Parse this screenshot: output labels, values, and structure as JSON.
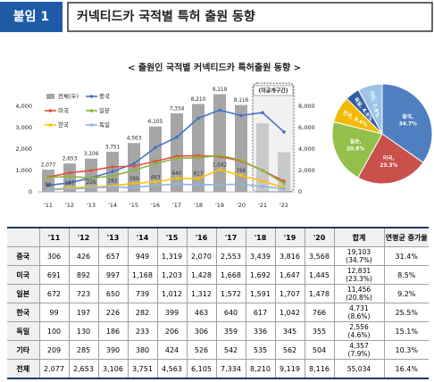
{
  "header": {
    "badge": "붙임 1",
    "title": "커넥티드카 국적별 특허 출원 동향"
  },
  "chart_data": [
    {
      "type": "bar-line",
      "title": "< 출원인 국적별 커넥티드카 특허출원 동향 >",
      "categories": [
        "'11",
        "'12",
        "'13",
        "'14",
        "'15",
        "'16",
        "'17",
        "'18",
        "'19",
        "'20",
        "'21",
        "'22"
      ],
      "ylim": [
        0,
        5000
      ],
      "yticks": [
        0,
        {
          "value": 1000,
          "label": "1,000"
        },
        {
          "value": 2000,
          "label": "2,000"
        },
        {
          "value": 3000,
          "label": "3,000"
        },
        {
          "value": 4000,
          "label": "4,000"
        }
      ],
      "y2lim": [
        0,
        10000
      ],
      "y2ticks": [
        0,
        {
          "value": 2000,
          "label": "2,000"
        },
        {
          "value": 4000,
          "label": "4,000"
        },
        {
          "value": 6000,
          "label": "6,000"
        },
        {
          "value": 8000,
          "label": "8,000"
        }
      ],
      "grid": false,
      "annotation": "(미공개구간)",
      "series": [
        {
          "name": "전체(우)",
          "kind": "bar",
          "axis": "y2",
          "color": "#a6a6a6",
          "values": [
            2077,
            2653,
            3106,
            3751,
            4563,
            6105,
            7334,
            8210,
            9119,
            8116,
            6400,
            3700
          ],
          "value_labels": [
            "2,077",
            "2,653",
            "3,106",
            "3,751",
            "4,563",
            "6,105",
            "7,334",
            "8,210",
            "9,119",
            "8,116",
            null,
            null
          ]
        },
        {
          "name": "중국",
          "kind": "line",
          "color": "#4472c4",
          "values": [
            306,
            426,
            657,
            949,
            1319,
            2070,
            2553,
            3439,
            3816,
            3568,
            3700,
            2800
          ]
        },
        {
          "name": "미국",
          "kind": "line",
          "color": "#e0533f",
          "values": [
            691,
            892,
            997,
            1168,
            1203,
            1428,
            1668,
            1692,
            1647,
            1445,
            1000,
            500
          ]
        },
        {
          "name": "일본",
          "kind": "line",
          "color": "#8cb43c",
          "values": [
            672,
            723,
            650,
            739,
            1012,
            1312,
            1572,
            1591,
            1707,
            1478,
            1000,
            400
          ]
        },
        {
          "name": "한국",
          "kind": "line",
          "color": "#ffc000",
          "values": [
            99,
            197,
            226,
            282,
            399,
            463,
            640,
            617,
            1042,
            766,
            500,
            200
          ],
          "value_labels": [
            "99",
            "197",
            "226",
            "282",
            "399",
            "463",
            "640",
            "617",
            "1,042",
            "766",
            null,
            null
          ]
        },
        {
          "name": "독일",
          "kind": "line",
          "color": "#8db3e2",
          "values": [
            100,
            130,
            186,
            233,
            206,
            306,
            359,
            336,
            345,
            355,
            250,
            150
          ]
        }
      ]
    },
    {
      "type": "pie",
      "categories": [
        "중국,",
        "미국,",
        "일본,",
        "한국,",
        "독일,",
        "기타,"
      ],
      "values": [
        34.7,
        23.3,
        20.8,
        8.6,
        4.6,
        7.9
      ],
      "value_labels": [
        "34.7%",
        "23.3%",
        "20.8%",
        "8.6%",
        "4.6%",
        "7.9%"
      ],
      "colors": [
        "#4f7fc0",
        "#c9504b",
        "#92c04a",
        "#f5b800",
        "#2e5fa3",
        "#9dc3e6"
      ]
    }
  ],
  "table": {
    "columns": [
      "'11",
      "'12",
      "'13",
      "'14",
      "'15",
      "'16",
      "'17",
      "'18",
      "'19",
      "'20",
      "합계",
      "연평균 증가율"
    ],
    "rows": [
      {
        "label": "중국",
        "values": [
          "306",
          "426",
          "657",
          "949",
          "1,319",
          "2,070",
          "2,553",
          "3,439",
          "3,816",
          "3,568"
        ],
        "total": "19,103",
        "share": "(34.7%)",
        "cagr": "31.4%"
      },
      {
        "label": "미국",
        "values": [
          "691",
          "892",
          "997",
          "1,168",
          "1,203",
          "1,428",
          "1,668",
          "1,692",
          "1,647",
          "1,445"
        ],
        "total": "12,831",
        "share": "(23.3%)",
        "cagr": "8.5%"
      },
      {
        "label": "일본",
        "values": [
          "672",
          "723",
          "650",
          "739",
          "1,012",
          "1,312",
          "1,572",
          "1,591",
          "1,707",
          "1,478"
        ],
        "total": "11,456",
        "share": "(20.8%)",
        "cagr": "9.2%"
      },
      {
        "label": "한국",
        "values": [
          "99",
          "197",
          "226",
          "282",
          "399",
          "463",
          "640",
          "617",
          "1,042",
          "766"
        ],
        "total": "4,731",
        "share": "(8.6%)",
        "cagr": "25.5%"
      },
      {
        "label": "독일",
        "values": [
          "100",
          "130",
          "186",
          "233",
          "206",
          "306",
          "359",
          "336",
          "345",
          "355"
        ],
        "total": "2,556",
        "share": "(4.6%)",
        "cagr": "15.1%"
      },
      {
        "label": "기타",
        "values": [
          "209",
          "285",
          "390",
          "380",
          "424",
          "526",
          "542",
          "535",
          "562",
          "504"
        ],
        "total": "4,357",
        "share": "(7.9%)",
        "cagr": "10.3%"
      },
      {
        "label": "전체",
        "values": [
          "2,077",
          "2,653",
          "3,106",
          "3,751",
          "4,563",
          "6,105",
          "7,334",
          "8,210",
          "9,119",
          "8,116"
        ],
        "total": "55,034",
        "cagr": "16.4%"
      }
    ]
  }
}
